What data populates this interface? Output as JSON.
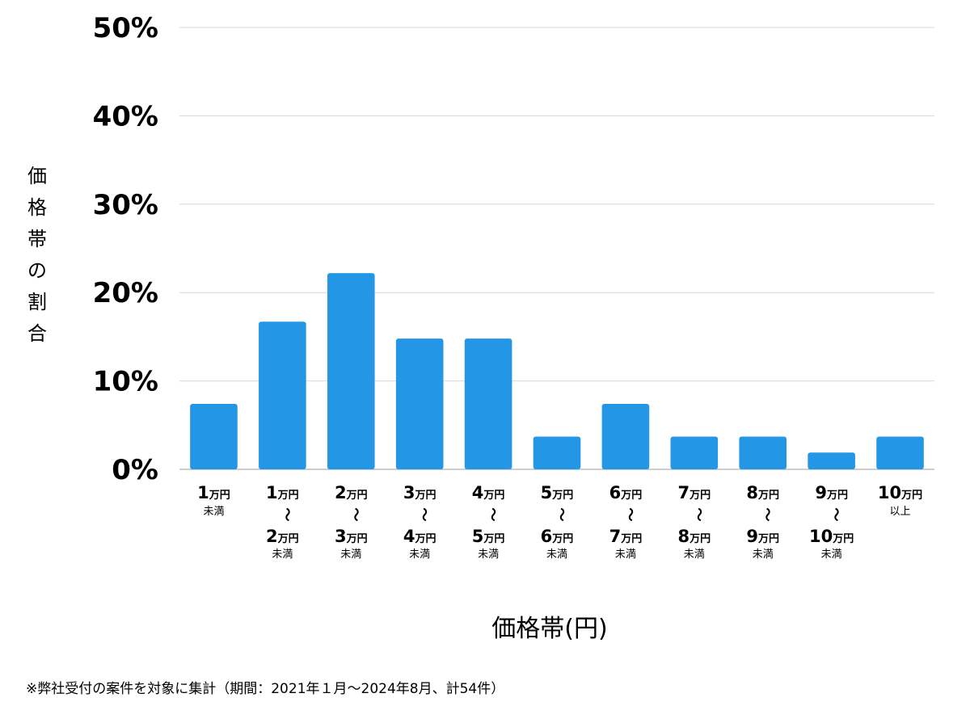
{
  "chart_data": {
    "type": "bar",
    "ylabel": "価格帯の割合",
    "xlabel": "価格帯(円)",
    "footnote": "※弊社受付の案件を対象に集計（期間：2021年１月〜2024年8月、計54件）",
    "ylim": [
      0,
      50
    ],
    "yticks": [
      "0%",
      "10%",
      "20%",
      "30%",
      "40%",
      "50%"
    ],
    "ytick_values": [
      0,
      10,
      20,
      30,
      40,
      50
    ],
    "grid": true,
    "bar_color": "#2396e6",
    "unit": "万円",
    "wave": "〜",
    "categories": [
      {
        "from": "",
        "to": "1",
        "note": "未満"
      },
      {
        "from": "1",
        "to": "2",
        "note": "未満"
      },
      {
        "from": "2",
        "to": "3",
        "note": "未満"
      },
      {
        "from": "3",
        "to": "4",
        "note": "未満"
      },
      {
        "from": "4",
        "to": "5",
        "note": "未満"
      },
      {
        "from": "5",
        "to": "6",
        "note": "未満"
      },
      {
        "from": "6",
        "to": "7",
        "note": "未満"
      },
      {
        "from": "7",
        "to": "8",
        "note": "未満"
      },
      {
        "from": "8",
        "to": "9",
        "note": "未満"
      },
      {
        "from": "9",
        "to": "10",
        "note": "未満"
      },
      {
        "from": "",
        "to": "10",
        "note": "以上"
      }
    ],
    "values": [
      7.4,
      16.7,
      22.2,
      14.8,
      14.8,
      3.7,
      7.4,
      3.7,
      3.7,
      1.9,
      3.7
    ]
  }
}
